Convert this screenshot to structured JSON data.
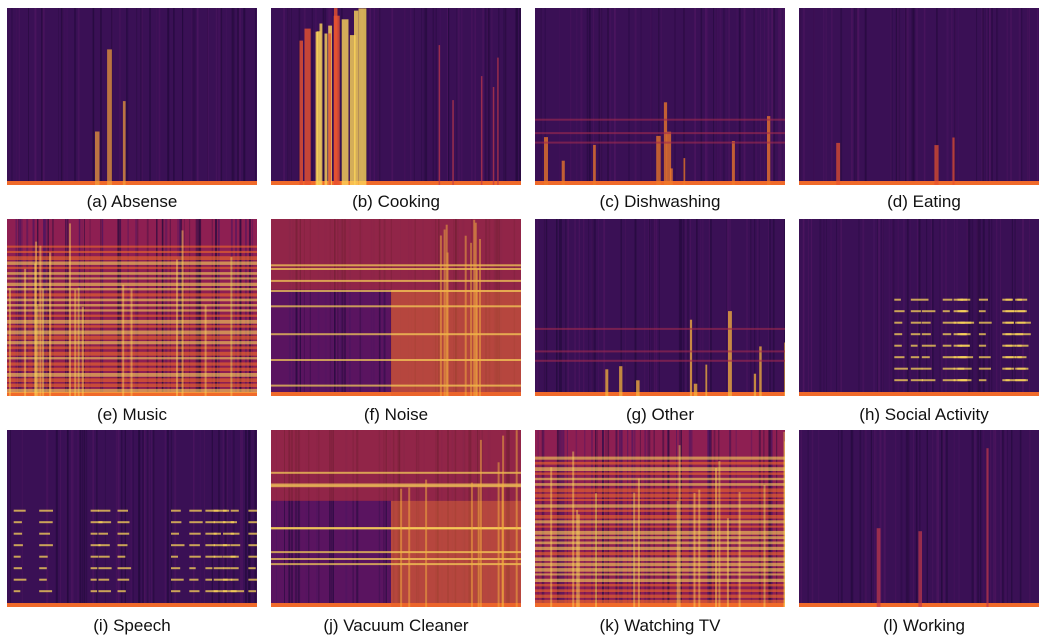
{
  "figure": {
    "panels": [
      {
        "caption": "(a) Absense",
        "style": "quiet",
        "accent": "#f2a03a"
      },
      {
        "caption": "(b) Cooking",
        "style": "bursts",
        "accent": "#fbd45a"
      },
      {
        "caption": "(c) Dishwashing",
        "style": "sparse",
        "accent": "#f07a2a"
      },
      {
        "caption": "(d) Eating",
        "style": "quiet",
        "accent": "#e8532f"
      },
      {
        "caption": "(e) Music",
        "style": "harmonic",
        "accent": "#fcd95a"
      },
      {
        "caption": "(f) Noise",
        "style": "noise",
        "accent": "#f38a2e"
      },
      {
        "caption": "(g) Other",
        "style": "sparse",
        "accent": "#f6b13e"
      },
      {
        "caption": "(h) Social Activity",
        "style": "speechy",
        "accent": "#f4a33a"
      },
      {
        "caption": "(i) Speech",
        "style": "speechy",
        "accent": "#fbd45a"
      },
      {
        "caption": "(j) Vacuum Cleaner",
        "style": "noise",
        "accent": "#e8612d"
      },
      {
        "caption": "(k) Watching TV",
        "style": "harmonic",
        "accent": "#f07a2a"
      },
      {
        "caption": "(l) Working",
        "style": "quiet",
        "accent": "#c33a4a"
      }
    ]
  }
}
